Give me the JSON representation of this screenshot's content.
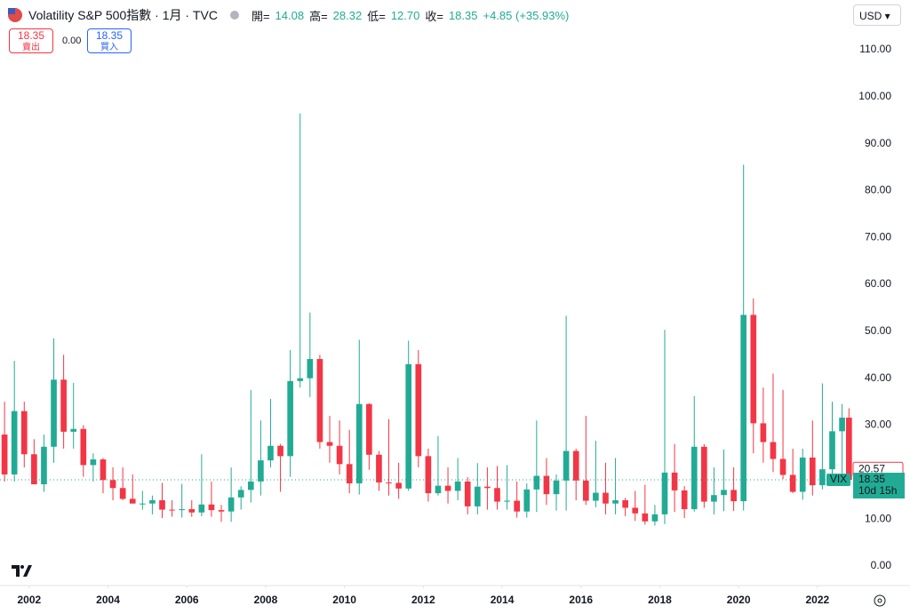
{
  "header": {
    "title": "Volatility S&P 500指數 · 1月 · TVC",
    "open_label": "開=",
    "open": 14.08,
    "high_label": "高=",
    "high": 28.32,
    "low_label": "低=",
    "low": 12.7,
    "close_label": "收=",
    "close": 18.35,
    "change": "+4.85 (+35.93%)",
    "currency": "USD"
  },
  "trade": {
    "sell_price": 18.35,
    "sell_label": "賣出",
    "spread": 0.0,
    "buy_price": 18.35,
    "buy_label": "買入"
  },
  "chart_data": {
    "type": "candlestick",
    "xlim": [
      2001.26,
      2022.86
    ],
    "xticks": [
      2002,
      2004,
      2006,
      2008,
      2010,
      2012,
      2014,
      2016,
      2018,
      2020,
      2022
    ],
    "ylim": [
      -3.8,
      120.6
    ],
    "yticks": [
      {
        "value": 0,
        "label": "0.00"
      },
      {
        "value": 10,
        "label": "10.00"
      },
      {
        "value": 20,
        "label": "20.00"
      },
      {
        "value": 30,
        "label": "30.00"
      },
      {
        "value": 40,
        "label": "40.00"
      },
      {
        "value": 50,
        "label": "50.00"
      },
      {
        "value": 60,
        "label": "60.00"
      },
      {
        "value": 70,
        "label": "70.00"
      },
      {
        "value": 80,
        "label": "80.00"
      },
      {
        "value": 90,
        "label": "90.00"
      },
      {
        "value": 100,
        "label": "100.00"
      },
      {
        "value": 110,
        "label": "110.00"
      }
    ],
    "up_color": "#22ab94",
    "down_color": "#f23645",
    "symbol": "VIX",
    "last_price": 18.35,
    "countdown": "10d 15h",
    "marker_price": 20.57,
    "x": [
      2001.375,
      2001.625,
      2001.875,
      2002.125,
      2002.375,
      2002.625,
      2002.875,
      2003.125,
      2003.375,
      2003.625,
      2003.875,
      2004.125,
      2004.375,
      2004.625,
      2004.875,
      2005.125,
      2005.375,
      2005.625,
      2005.875,
      2006.125,
      2006.375,
      2006.625,
      2006.875,
      2007.125,
      2007.375,
      2007.625,
      2007.875,
      2008.125,
      2008.375,
      2008.625,
      2008.875,
      2009.125,
      2009.375,
      2009.625,
      2009.875,
      2010.125,
      2010.375,
      2010.625,
      2010.875,
      2011.125,
      2011.375,
      2011.625,
      2011.875,
      2012.125,
      2012.375,
      2012.625,
      2012.875,
      2013.125,
      2013.375,
      2013.625,
      2013.875,
      2014.125,
      2014.375,
      2014.625,
      2014.875,
      2015.125,
      2015.375,
      2015.625,
      2015.875,
      2016.125,
      2016.375,
      2016.625,
      2016.875,
      2017.125,
      2017.375,
      2017.625,
      2017.875,
      2018.125,
      2018.375,
      2018.625,
      2018.875,
      2019.125,
      2019.375,
      2019.625,
      2019.875,
      2020.125,
      2020.375,
      2020.625,
      2020.875,
      2021.125,
      2021.375,
      2021.625,
      2021.875,
      2022.125,
      2022.375,
      2022.625,
      2022.8
    ],
    "open": [
      28,
      19.5,
      33,
      23.8,
      17.4,
      25.4,
      39.7,
      28.6,
      29.2,
      21.5,
      22.7,
      18.3,
      16.6,
      14.3,
      13.3,
      13.3,
      14,
      12,
      11.9,
      12.1,
      11.4,
      13.1,
      11.9,
      11.6,
      14.6,
      16.2,
      18,
      22.5,
      25.6,
      23.4,
      39.4,
      40,
      44.1,
      26.4,
      25.6,
      21.7,
      17.6,
      34.5,
      23.7,
      17.8,
      17.7,
      16.5,
      43,
      23.4,
      15.5,
      17.1,
      16,
      18,
      12.7,
      16.9,
      16.6,
      13.7,
      13.9,
      11.6,
      16.3,
      19.2,
      15.3,
      18.2,
      24.5,
      18.2,
      13.9,
      15.6,
      13.3,
      14,
      12.4,
      11.2,
      9.5,
      11,
      19.9,
      16.1,
      12.1,
      25.4,
      13.7,
      15.1,
      16.2,
      13.8,
      53.5,
      30.4,
      26.4,
      22.8,
      19.4,
      15.8,
      23.1,
      17.2,
      20.6,
      28.7,
      31.6
    ],
    "high": [
      35,
      43.7,
      35,
      27,
      28,
      48.5,
      45,
      39,
      30,
      24,
      23,
      21,
      21,
      19.5,
      16,
      15,
      17.7,
      14,
      17.5,
      14,
      23.8,
      18,
      13,
      21,
      17,
      37.5,
      31,
      35.6,
      26,
      46,
      96.4,
      54,
      45,
      32,
      31,
      29,
      48.2,
      34.7,
      24.5,
      31.3,
      22,
      48,
      46,
      25,
      27.7,
      21,
      23,
      18.9,
      21.9,
      21,
      21.3,
      21.5,
      18,
      17.6,
      31,
      23,
      19.5,
      53.3,
      25,
      32,
      26.7,
      22,
      23,
      14.5,
      16,
      17.3,
      13,
      50.3,
      26,
      17,
      36.2,
      26,
      21,
      24.8,
      21,
      85.5,
      57,
      38,
      41,
      37.5,
      25,
      25,
      31,
      38.9,
      35,
      34.5,
      33.6
    ],
    "low": [
      18,
      18,
      21,
      18,
      15.8,
      22,
      25,
      25,
      19,
      18,
      15.5,
      14,
      14,
      13.3,
      12,
      11,
      10.2,
      10.5,
      10.3,
      10.5,
      10.6,
      10.5,
      9.4,
      9.4,
      12,
      13.5,
      15,
      21,
      15.8,
      19,
      38,
      36,
      25,
      22,
      19.5,
      15.5,
      15.2,
      20.5,
      16,
      15,
      14.3,
      16,
      21,
      13.7,
      15,
      13.3,
      14,
      11,
      11,
      12,
      12,
      12,
      10.3,
      10.3,
      11.5,
      13,
      11.8,
      11.8,
      14,
      13,
      12.5,
      11,
      11,
      10.6,
      9.6,
      8.8,
      8.6,
      8.9,
      11.5,
      10.2,
      11.6,
      12.4,
      11,
      11.7,
      11.7,
      11.8,
      24,
      22,
      20,
      18.5,
      15.5,
      14.1,
      15,
      16.3,
      18.5,
      19.7,
      18.3
    ],
    "close": [
      19.5,
      33,
      23.8,
      17.4,
      25.4,
      39.7,
      28.6,
      29.2,
      21.5,
      22.7,
      18.3,
      16.6,
      14.3,
      13.3,
      13.3,
      14,
      12,
      11.9,
      12.1,
      11.4,
      13.1,
      11.9,
      11.6,
      14.6,
      16.2,
      18,
      22.5,
      25.6,
      23.4,
      39.4,
      40,
      44.1,
      26.4,
      25.6,
      21.7,
      17.6,
      34.5,
      23.7,
      17.8,
      17.7,
      16.5,
      43,
      23.4,
      15.5,
      17.1,
      16,
      18,
      12.7,
      16.9,
      16.6,
      13.7,
      13.9,
      11.6,
      16.3,
      19.2,
      15.3,
      18.2,
      24.5,
      18.2,
      13.9,
      15.6,
      13.3,
      14,
      12.4,
      11.2,
      9.5,
      11,
      19.9,
      16.1,
      12.1,
      25.4,
      13.7,
      15.1,
      16.2,
      13.8,
      53.5,
      30.4,
      26.4,
      22.8,
      19.4,
      15.8,
      23.1,
      17.2,
      20.6,
      28.7,
      31.6,
      18.35
    ]
  }
}
